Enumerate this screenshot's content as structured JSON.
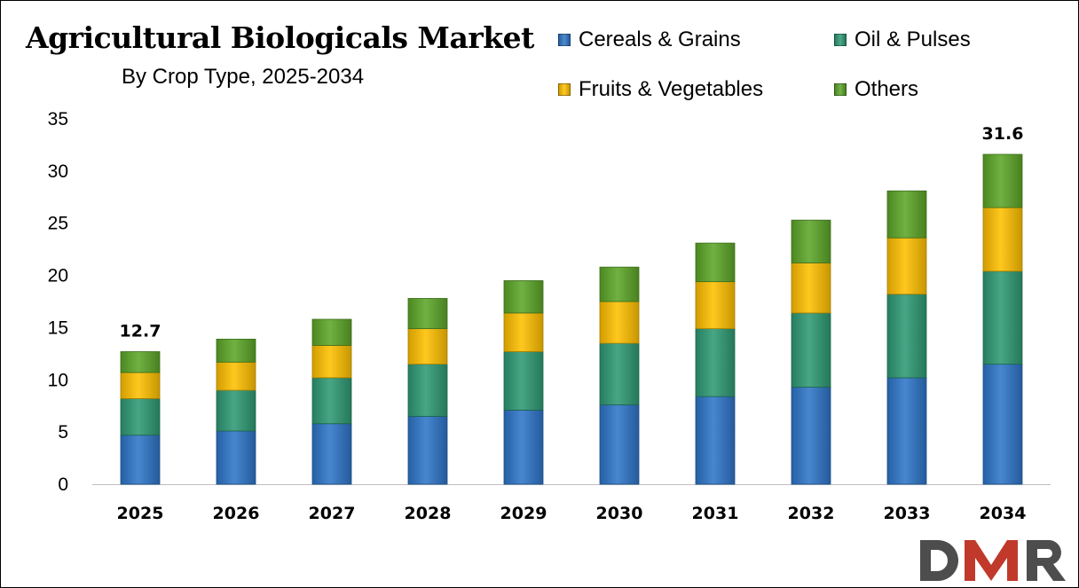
{
  "chart_data": {
    "type": "bar",
    "stacked": true,
    "title": "Agricultural Biologicals Market",
    "subtitle": "By Crop Type, 2025-2034",
    "categories": [
      "2025",
      "2026",
      "2027",
      "2028",
      "2029",
      "2030",
      "2031",
      "2032",
      "2033",
      "2034"
    ],
    "series": [
      {
        "name": "Cereals & Grains",
        "color": "#2e75c8",
        "values": [
          4.7,
          5.1,
          5.8,
          6.5,
          7.1,
          7.6,
          8.4,
          9.3,
          10.2,
          11.5
        ]
      },
      {
        "name": "Oil & Pulses",
        "color": "#2e9a74",
        "values": [
          3.5,
          3.9,
          4.4,
          5.0,
          5.6,
          5.9,
          6.5,
          7.1,
          8.0,
          8.9
        ]
      },
      {
        "name": "Fruits & Vegetables",
        "color": "#ffc000",
        "values": [
          2.5,
          2.7,
          3.1,
          3.4,
          3.7,
          4.0,
          4.5,
          4.8,
          5.4,
          6.1
        ]
      },
      {
        "name": "Others",
        "color": "#5ca628",
        "values": [
          2.0,
          2.2,
          2.5,
          2.9,
          3.1,
          3.3,
          3.7,
          4.1,
          4.5,
          5.1
        ]
      }
    ],
    "data_labels": [
      {
        "category": "2025",
        "text": "12.7"
      },
      {
        "category": "2034",
        "text": "31.6"
      }
    ],
    "y_ticks": [
      "0",
      "5",
      "10",
      "15",
      "20",
      "25",
      "30",
      "35"
    ],
    "ylim": [
      0,
      35
    ],
    "legend_position": "top-right",
    "grid": false
  },
  "logo": {
    "text": "DMR",
    "colors": [
      "#4d4d4d",
      "#c0392b"
    ]
  }
}
